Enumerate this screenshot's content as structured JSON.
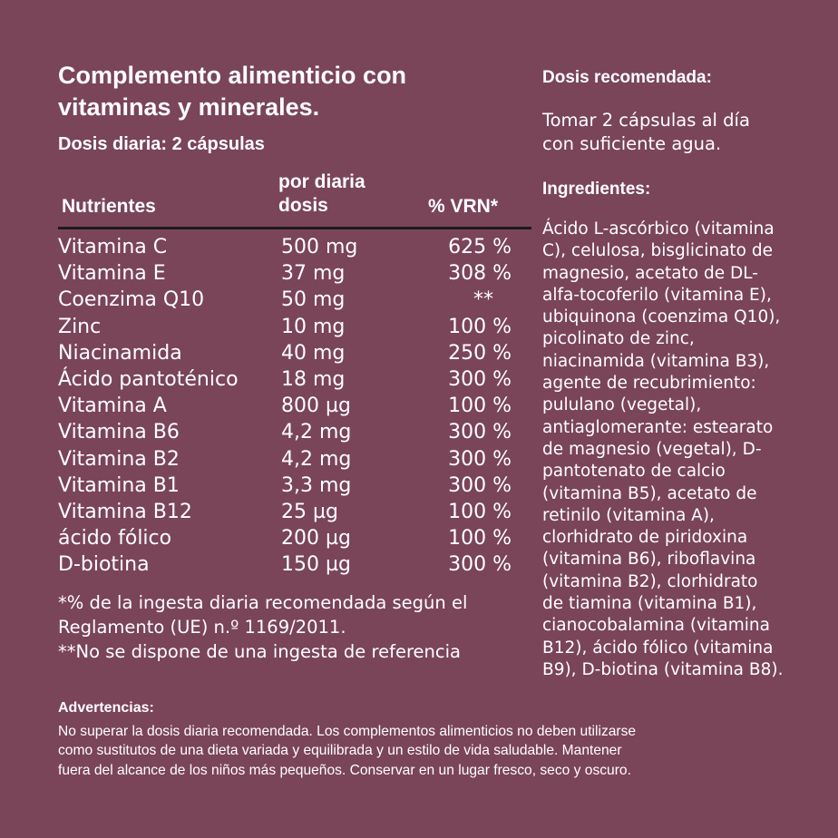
{
  "title": "Complemento alimenticio con vitaminas y minerales.",
  "daily_dose": "Dosis diaria: 2 cápsulas",
  "table": {
    "headers": {
      "nutrient": "Nutrientes",
      "dose_line1": "por diaria",
      "dose_line2": "dosis",
      "vrn": "% VRN*"
    },
    "rows": [
      {
        "name": "Vitamina C",
        "dose": "500 mg",
        "vrn": "625 %"
      },
      {
        "name": "Vitamina E",
        "dose": "37 mg",
        "vrn": "308 %"
      },
      {
        "name": "Coenzima Q10",
        "dose": "50 mg",
        "vrn": "**"
      },
      {
        "name": "Zinc",
        "dose": "10 mg",
        "vrn": "100 %"
      },
      {
        "name": "Niacinamida",
        "dose": "40 mg",
        "vrn": "250 %"
      },
      {
        "name": "Ácido pantoténico",
        "dose": "18 mg",
        "vrn": "300 %"
      },
      {
        "name": "Vitamina A",
        "dose": "800 µg",
        "vrn": "100 %"
      },
      {
        "name": "Vitamina B6",
        "dose": "4,2 mg",
        "vrn": "300 %"
      },
      {
        "name": "Vitamina B2",
        "dose": "4,2 mg",
        "vrn": "300 %"
      },
      {
        "name": "Vitamina B1",
        "dose": "3,3 mg",
        "vrn": "300 %"
      },
      {
        "name": "Vitamina B12",
        "dose": "25 µg",
        "vrn": "100 %"
      },
      {
        "name": "ácido fólico",
        "dose": "200 µg",
        "vrn": "100 %"
      },
      {
        "name": "D-biotina",
        "dose": "150 µg",
        "vrn": "300 %"
      }
    ]
  },
  "notes": {
    "note1_line1": "*% de la ingesta diaria recomendada según el",
    "note1_line2": "Reglamento (UE) n.º 1169/2011.",
    "note2": "**No se dispone de una ingesta de referencia"
  },
  "recommended": {
    "heading": "Dosis recomendada:",
    "line1": "Tomar 2 cápsulas al día",
    "line2": "con suficiente agua."
  },
  "ingredients": {
    "heading": "Ingredientes:",
    "lines": [
      "Ácido L-ascórbico (vitamina",
      "C), celulosa, bisglicinato de",
      "magnesio, acetato de DL-",
      "alfa-tocoferilo (vitamina E),",
      "ubiquinona (coenzima Q10),",
      "picolinato de zinc,",
      "niacinamida (vitamina B3),",
      "agente de recubrimiento:",
      "pululano (vegetal),",
      "antiaglomerante: estearato",
      "de magnesio (vegetal), D-",
      "pantotenato de calcio",
      "(vitamina B5), acetato de",
      "retinilo (vitamina A),",
      "clorhidrato de piridoxina",
      "(vitamina B6), riboflavina",
      "(vitamina B2), clorhidrato",
      "de tiamina (vitamina B1),",
      "cianocobalamina (vitamina",
      "B12), ácido fólico (vitamina",
      "B9), D-biotina (vitamina B8)."
    ]
  },
  "warnings": {
    "heading": "Advertencias:",
    "line1": "No superar la dosis diaria recomendada. Los complementos alimenticios no deben utilizarse",
    "line2": "como sustitutos de una dieta variada y equilibrada y un estilo de vida saludable. Mantener",
    "line3": "fuera del alcance de los niños más pequeños. Conservar en un lugar fresco, seco y oscuro."
  },
  "colors": {
    "background": "#7a4459",
    "text": "#ffffff",
    "rule": "#1b1b1b"
  }
}
